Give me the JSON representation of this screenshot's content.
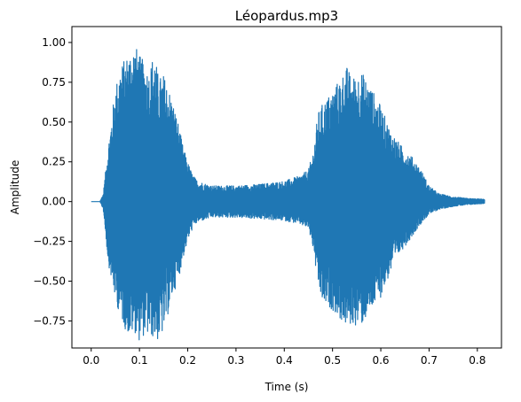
{
  "chart_data": {
    "type": "line",
    "title": "Léopardus.mp3",
    "xlabel": "Time (s)",
    "ylabel": "Amplitude",
    "xlim": [
      -0.04,
      0.85
    ],
    "ylim": [
      -0.92,
      1.1
    ],
    "xticks": [
      0.0,
      0.1,
      0.2,
      0.3,
      0.4,
      0.5,
      0.6,
      0.7,
      0.8
    ],
    "xtick_labels": [
      "0.0",
      "0.1",
      "0.2",
      "0.3",
      "0.4",
      "0.5",
      "0.6",
      "0.7",
      "0.8"
    ],
    "yticks": [
      -0.75,
      -0.5,
      -0.25,
      0.0,
      0.25,
      0.5,
      0.75,
      1.0
    ],
    "ytick_labels": [
      "−0.75",
      "−0.50",
      "−0.25",
      "0.00",
      "0.25",
      "0.50",
      "0.75",
      "1.00"
    ],
    "grid": false,
    "line_color": "#1f77b4",
    "series": [
      {
        "name": "",
        "duration": 0.815,
        "envelope": {
          "t": [
            0.0,
            0.018,
            0.025,
            0.035,
            0.05,
            0.06,
            0.07,
            0.08,
            0.09,
            0.1,
            0.11,
            0.12,
            0.13,
            0.14,
            0.15,
            0.16,
            0.17,
            0.18,
            0.19,
            0.2,
            0.21,
            0.22,
            0.25,
            0.3,
            0.35,
            0.4,
            0.43,
            0.45,
            0.46,
            0.47,
            0.48,
            0.5,
            0.52,
            0.53,
            0.54,
            0.56,
            0.58,
            0.6,
            0.62,
            0.64,
            0.66,
            0.68,
            0.7,
            0.72,
            0.75,
            0.78,
            0.815
          ],
          "max": [
            0.0,
            0.0,
            0.05,
            0.35,
            0.72,
            0.85,
            0.9,
            0.95,
            1.0,
            0.92,
            0.88,
            0.82,
            0.95,
            0.78,
            0.8,
            0.72,
            0.62,
            0.5,
            0.35,
            0.25,
            0.17,
            0.13,
            0.1,
            0.1,
            0.11,
            0.13,
            0.16,
            0.2,
            0.32,
            0.56,
            0.62,
            0.7,
            0.8,
            0.85,
            0.78,
            0.82,
            0.72,
            0.6,
            0.45,
            0.36,
            0.3,
            0.22,
            0.1,
            0.05,
            0.03,
            0.02,
            0.015
          ],
          "min": [
            0.0,
            0.0,
            -0.05,
            -0.38,
            -0.62,
            -0.72,
            -0.8,
            -0.85,
            -0.82,
            -0.88,
            -0.84,
            -0.85,
            -0.86,
            -0.88,
            -0.82,
            -0.7,
            -0.58,
            -0.5,
            -0.36,
            -0.25,
            -0.17,
            -0.13,
            -0.1,
            -0.1,
            -0.11,
            -0.12,
            -0.14,
            -0.17,
            -0.3,
            -0.54,
            -0.65,
            -0.68,
            -0.76,
            -0.79,
            -0.78,
            -0.78,
            -0.69,
            -0.6,
            -0.45,
            -0.32,
            -0.24,
            -0.15,
            -0.08,
            -0.05,
            -0.03,
            -0.02,
            -0.012
          ]
        }
      }
    ]
  }
}
